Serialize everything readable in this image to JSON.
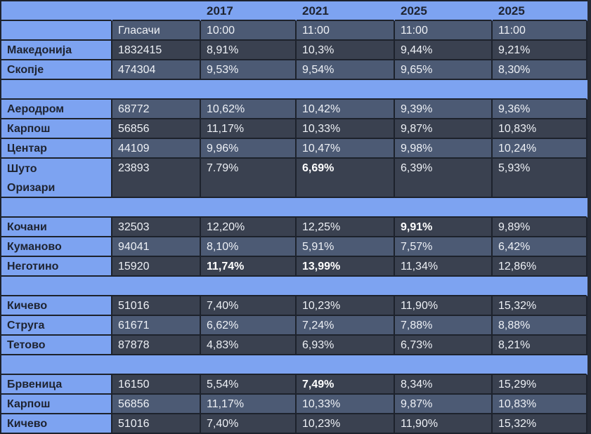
{
  "colors": {
    "light_blue": "#7da3f1",
    "row_dark": "#3a4150",
    "row_light": "#4c5a74",
    "border": "#1d222c",
    "page_background": "#262b36",
    "text_dark": "#1e2330",
    "text_light": "#eef1f6"
  },
  "chart_data": {
    "type": "table",
    "title": "",
    "voters_header": "Гласачи",
    "year_headers": [
      "2017",
      "2021",
      "2025",
      "2025"
    ],
    "time_headers": [
      "10:00",
      "11:00",
      "11:00",
      "11:00"
    ],
    "rows": [
      {
        "type": "data",
        "name": "Македонија",
        "voters": "1832415",
        "values": [
          "8,91%",
          "10,3%",
          "9,44%",
          "9,21%"
        ],
        "bold": [],
        "shade": "dark",
        "tall": false
      },
      {
        "type": "data",
        "name": "Скопје",
        "voters": "474304",
        "values": [
          "9,53%",
          "9,54%",
          "9,65%",
          "8,30%"
        ],
        "bold": [],
        "shade": "light",
        "tall": false
      },
      {
        "type": "gap"
      },
      {
        "type": "data",
        "name": "Аеродром",
        "voters": "68772",
        "values": [
          "10,62%",
          "10,42%",
          "9,39%",
          "9,36%"
        ],
        "bold": [],
        "shade": "light",
        "tall": false
      },
      {
        "type": "data",
        "name": "Карпош",
        "voters": "56856",
        "values": [
          "11,17%",
          "10,33%",
          "9,87%",
          "10,83%"
        ],
        "bold": [],
        "shade": "dark",
        "tall": false
      },
      {
        "type": "data",
        "name": "Центар",
        "voters": "44109",
        "values": [
          "9,96%",
          "10,47%",
          "9,98%",
          "10,24%"
        ],
        "bold": [],
        "shade": "light",
        "tall": false
      },
      {
        "type": "data",
        "name": "Шуто Оризари",
        "voters": "23893",
        "values": [
          "7.79%",
          "6,69%",
          "6,39%",
          "5,93%"
        ],
        "bold": [
          1
        ],
        "shade": "dark",
        "tall": true
      },
      {
        "type": "gap"
      },
      {
        "type": "data",
        "name": "Кочани",
        "voters": "32503",
        "values": [
          "12,20%",
          "12,25%",
          "9,91%",
          "9,89%"
        ],
        "bold": [
          2
        ],
        "shade": "dark",
        "tall": false
      },
      {
        "type": "data",
        "name": "Куманово",
        "voters": "94041",
        "values": [
          "8,10%",
          "5,91%",
          "7,57%",
          "6,42%"
        ],
        "bold": [],
        "shade": "light",
        "tall": false
      },
      {
        "type": "data",
        "name": "Неготино",
        "voters": "15920",
        "values": [
          "11,74%",
          "13,99%",
          "11,34%",
          "12,86%"
        ],
        "bold": [
          0,
          1
        ],
        "shade": "dark",
        "tall": false
      },
      {
        "type": "gap"
      },
      {
        "type": "data",
        "name": "Кичево",
        "voters": "51016",
        "values": [
          "7,40%",
          "10,23%",
          "11,90%",
          "15,32%"
        ],
        "bold": [],
        "shade": "dark",
        "tall": false
      },
      {
        "type": "data",
        "name": "Струга",
        "voters": "61671",
        "values": [
          "6,62%",
          "7,24%",
          "7,88%",
          "8,88%"
        ],
        "bold": [],
        "shade": "light",
        "tall": false
      },
      {
        "type": "data",
        "name": "Тетово",
        "voters": "87878",
        "values": [
          "4,83%",
          "6,93%",
          "6,73%",
          "8,21%"
        ],
        "bold": [],
        "shade": "dark",
        "tall": false
      },
      {
        "type": "gap"
      },
      {
        "type": "data",
        "name": "Брвеница",
        "voters": "16150",
        "values": [
          "5,54%",
          "7,49%",
          "8,34%",
          "15,29%"
        ],
        "bold": [
          1
        ],
        "shade": "dark",
        "tall": false
      },
      {
        "type": "data",
        "name": "Карпош",
        "voters": "56856",
        "values": [
          "11,17%",
          "10,33%",
          "9,87%",
          "10,83%"
        ],
        "bold": [],
        "shade": "light",
        "tall": false
      },
      {
        "type": "data",
        "name": "Кичево",
        "voters": "51016",
        "values": [
          "7,40%",
          "10,23%",
          "11,90%",
          "15,32%"
        ],
        "bold": [],
        "shade": "dark",
        "tall": false
      }
    ]
  }
}
